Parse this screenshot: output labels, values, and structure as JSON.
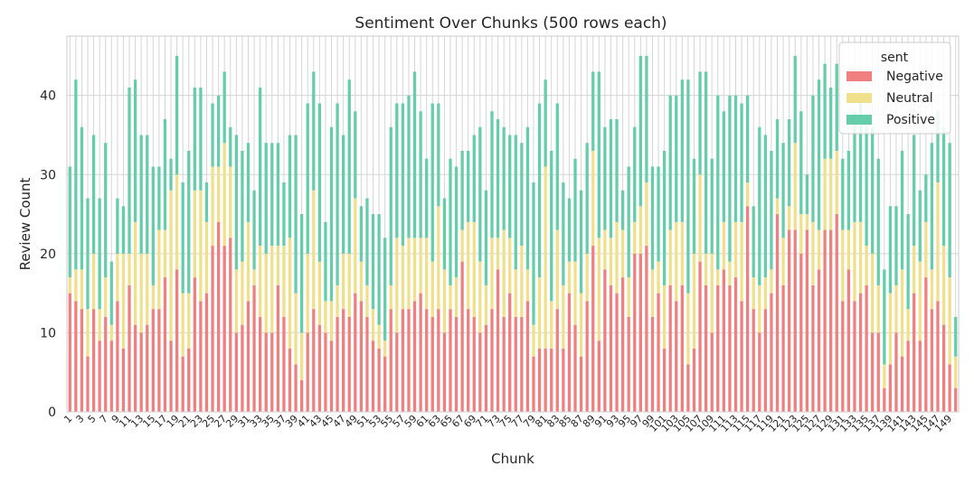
{
  "chart_data": {
    "type": "bar",
    "stacked": true,
    "title": "Sentiment Over Chunks (500 rows each)",
    "xlabel": "Chunk",
    "ylabel": "Review Count",
    "ylim": [
      0,
      47.5
    ],
    "yticks": [
      0,
      10,
      20,
      30,
      40
    ],
    "grid": true,
    "legend": {
      "title": "sent",
      "placement": "top-right"
    },
    "colors": {
      "Negative": "#f08080",
      "Neutral": "#f0e08c",
      "Positive": "#66cdaa"
    },
    "x_tick_step": 2,
    "categories": [
      "1",
      "2",
      "3",
      "4",
      "5",
      "6",
      "7",
      "8",
      "9",
      "10",
      "11",
      "12",
      "13",
      "14",
      "15",
      "16",
      "17",
      "18",
      "19",
      "20",
      "21",
      "22",
      "23",
      "24",
      "25",
      "26",
      "27",
      "28",
      "29",
      "30",
      "31",
      "32",
      "33",
      "34",
      "35",
      "36",
      "37",
      "38",
      "39",
      "40",
      "41",
      "42",
      "43",
      "44",
      "45",
      "46",
      "47",
      "48",
      "49",
      "50",
      "51",
      "52",
      "53",
      "54",
      "55",
      "56",
      "57",
      "58",
      "59",
      "60",
      "61",
      "62",
      "63",
      "64",
      "65",
      "66",
      "67",
      "68",
      "69",
      "70",
      "71",
      "72",
      "73",
      "74",
      "75",
      "76",
      "77",
      "78",
      "79",
      "80",
      "81",
      "82",
      "83",
      "84",
      "85",
      "86",
      "87",
      "88",
      "89",
      "90",
      "91",
      "92",
      "93",
      "94",
      "95",
      "96",
      "97",
      "98",
      "99",
      "100",
      "101",
      "102",
      "103",
      "104",
      "105",
      "106",
      "107",
      "108",
      "109",
      "110",
      "111",
      "112",
      "113",
      "114",
      "115",
      "116",
      "117",
      "118",
      "119",
      "120",
      "121",
      "122",
      "123",
      "124",
      "125",
      "126",
      "127",
      "128",
      "129",
      "130",
      "131",
      "132",
      "133",
      "134",
      "135",
      "136",
      "137",
      "138",
      "139",
      "140",
      "141",
      "142",
      "143",
      "144",
      "145",
      "146",
      "147",
      "148",
      "149",
      "150"
    ],
    "series": [
      {
        "name": "Negative",
        "values": [
          15,
          14,
          13,
          7,
          13,
          9,
          12,
          9,
          14,
          8,
          16,
          11,
          10,
          11,
          13,
          13,
          17,
          9,
          18,
          7,
          8,
          17,
          14,
          15,
          21,
          24,
          21,
          22,
          10,
          11,
          14,
          16,
          12,
          10,
          10,
          16,
          12,
          8,
          6,
          4,
          10,
          13,
          11,
          10,
          9,
          12,
          13,
          12,
          15,
          14,
          12,
          9,
          8,
          7,
          13,
          10,
          13,
          13,
          14,
          15,
          13,
          12,
          13,
          10,
          13,
          12,
          19,
          13,
          12,
          10,
          11,
          13,
          18,
          12,
          15,
          12,
          12,
          14,
          7,
          8,
          8,
          8,
          13,
          8,
          15,
          11,
          7,
          14,
          21,
          9,
          18,
          16,
          15,
          17,
          12,
          20,
          20,
          21,
          12,
          15,
          8,
          16,
          14,
          16,
          6,
          8,
          19,
          16,
          10,
          16,
          18,
          16,
          17,
          14,
          26,
          13,
          10,
          13,
          15,
          25,
          16,
          23,
          23,
          20,
          23,
          16,
          18,
          23,
          23,
          25,
          14,
          18,
          14,
          15,
          16,
          10,
          10,
          3,
          6,
          10,
          7,
          9,
          15,
          9,
          17,
          13,
          14,
          11,
          6,
          3
        ]
      },
      {
        "name": "Neutral",
        "values": [
          2,
          4,
          5,
          6,
          7,
          4,
          5,
          2,
          6,
          12,
          4,
          13,
          10,
          9,
          3,
          10,
          6,
          19,
          12,
          8,
          7,
          11,
          14,
          9,
          10,
          7,
          13,
          9,
          8,
          8,
          10,
          2,
          9,
          10,
          11,
          5,
          9,
          14,
          9,
          6,
          10,
          15,
          8,
          4,
          5,
          4,
          7,
          8,
          12,
          5,
          4,
          4,
          3,
          2,
          3,
          12,
          8,
          9,
          8,
          7,
          9,
          7,
          13,
          8,
          3,
          5,
          4,
          11,
          12,
          9,
          5,
          9,
          4,
          11,
          7,
          6,
          9,
          4,
          4,
          9,
          23,
          6,
          10,
          8,
          4,
          8,
          8,
          6,
          12,
          13,
          5,
          6,
          9,
          6,
          5,
          4,
          6,
          8,
          6,
          4,
          8,
          7,
          10,
          8,
          9,
          12,
          11,
          4,
          10,
          2,
          6,
          3,
          7,
          10,
          3,
          4,
          6,
          4,
          3,
          2,
          6,
          3,
          11,
          5,
          2,
          8,
          5,
          9,
          9,
          8,
          9,
          5,
          10,
          9,
          5,
          10,
          6,
          3,
          9,
          6,
          11,
          4,
          6,
          10,
          7,
          5,
          15,
          10,
          11,
          4
        ]
      },
      {
        "name": "Positive",
        "values": [
          14,
          24,
          18,
          14,
          15,
          14,
          17,
          8,
          7,
          6,
          21,
          18,
          15,
          15,
          15,
          8,
          14,
          4,
          15,
          14,
          18,
          13,
          13,
          5,
          8,
          9,
          9,
          5,
          17,
          14,
          10,
          10,
          20,
          14,
          13,
          13,
          8,
          13,
          20,
          15,
          19,
          15,
          20,
          10,
          22,
          23,
          15,
          22,
          11,
          7,
          11,
          12,
          14,
          13,
          20,
          17,
          18,
          18,
          21,
          16,
          10,
          20,
          13,
          9,
          16,
          14,
          10,
          9,
          11,
          17,
          12,
          16,
          15,
          13,
          13,
          17,
          13,
          18,
          18,
          22,
          11,
          19,
          16,
          13,
          8,
          13,
          13,
          14,
          10,
          21,
          13,
          15,
          13,
          5,
          14,
          12,
          19,
          16,
          13,
          12,
          17,
          17,
          16,
          18,
          27,
          12,
          13,
          23,
          12,
          22,
          14,
          21,
          16,
          15,
          11,
          9,
          20,
          18,
          15,
          10,
          12,
          11,
          11,
          13,
          5,
          16,
          19,
          12,
          9,
          11,
          9,
          10,
          14,
          16,
          15,
          16,
          16,
          12,
          11,
          10,
          15,
          12,
          14,
          9,
          6,
          16,
          9,
          15,
          17,
          5
        ]
      }
    ]
  }
}
